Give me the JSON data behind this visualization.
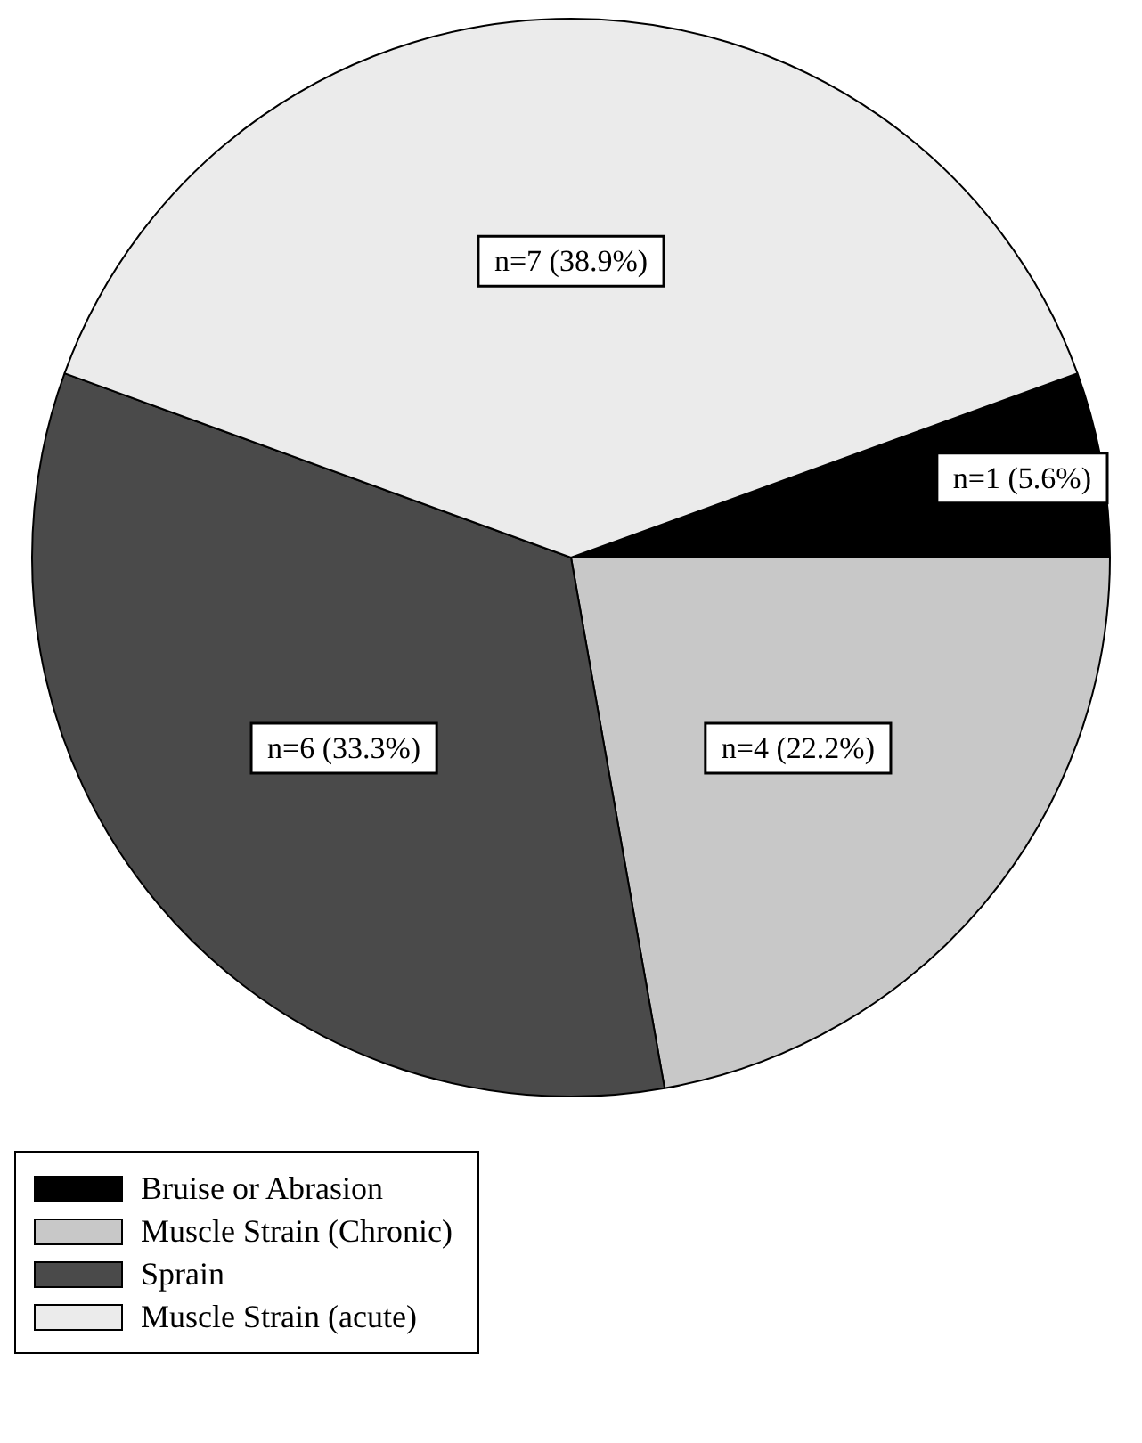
{
  "chart_data": {
    "type": "pie",
    "categories": [
      "Bruise or Abrasion",
      "Muscle Strain (Chronic)",
      "Sprain",
      "Muscle Strain (acute)"
    ],
    "values": [
      1,
      4,
      6,
      7
    ],
    "value_labels": [
      "n=1 (5.6%)",
      "n=4 (22.2%)",
      "n=6 (33.3%)",
      "n=7 (38.9%)"
    ],
    "colors": [
      "#000000",
      "#c8c8c8",
      "#4a4a4a",
      "#ebebeb"
    ],
    "legend": "bottom left"
  }
}
